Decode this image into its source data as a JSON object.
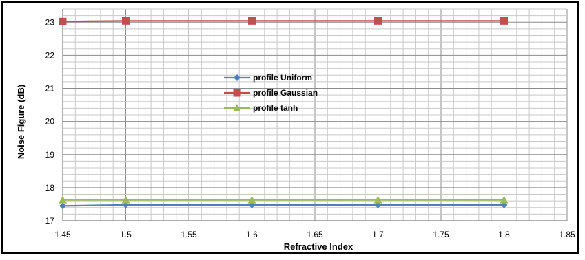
{
  "chart_data": {
    "type": "line",
    "title": "",
    "xlabel": "Refractive Index",
    "ylabel": "Noise Figure (dB)",
    "xlim": [
      1.45,
      1.85
    ],
    "ylim": [
      17,
      23.4
    ],
    "x_tick_labels": [
      "1.45",
      "1.5",
      "1.55",
      "1.6",
      "1.65",
      "1.7",
      "1.75",
      "1.8",
      "1.85"
    ],
    "y_tick_labels": [
      "17",
      "18",
      "19",
      "20",
      "21",
      "22",
      "23"
    ],
    "grid": true,
    "legend_position": "center-left",
    "series": [
      {
        "name": "profile  Uniform",
        "color": "#4F81BD",
        "marker": "diamond",
        "x": [
          1.45,
          1.5,
          1.6,
          1.7,
          1.8
        ],
        "y": [
          17.45,
          17.48,
          17.48,
          17.48,
          17.48
        ]
      },
      {
        "name": "profile Gaussian",
        "color": "#C0504D",
        "marker": "square",
        "x": [
          1.45,
          1.5,
          1.6,
          1.7,
          1.8
        ],
        "y": [
          23.02,
          23.04,
          23.04,
          23.04,
          23.04
        ]
      },
      {
        "name": "profile  tanh",
        "color": "#9BBB59",
        "marker": "triangle",
        "x": [
          1.45,
          1.5,
          1.6,
          1.7,
          1.8
        ],
        "y": [
          17.63,
          17.63,
          17.63,
          17.63,
          17.63
        ]
      }
    ]
  }
}
